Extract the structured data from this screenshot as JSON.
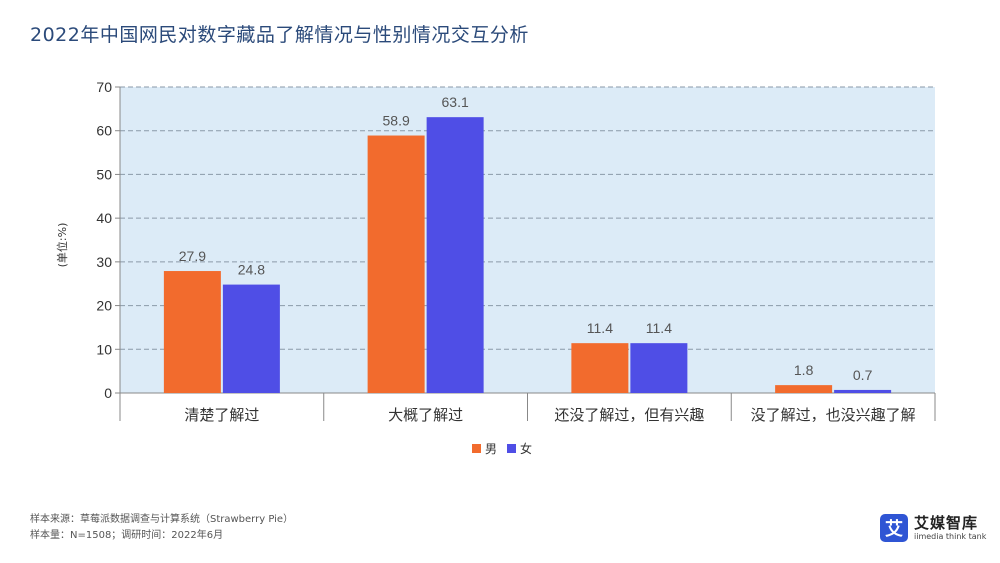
{
  "title": "2022年中国网民对数字藏品了解情况与性别情况交互分析",
  "chart_data": {
    "type": "bar",
    "categories": [
      "清楚了解过",
      "大概了解过",
      "还没了解过，但有兴趣",
      "没了解过，也没兴趣了解"
    ],
    "series": [
      {
        "name": "男",
        "values": [
          27.9,
          58.9,
          11.4,
          1.8
        ],
        "color": "#f26b2d"
      },
      {
        "name": "女",
        "values": [
          24.8,
          63.1,
          11.4,
          0.7
        ],
        "color": "#4f4ee6"
      }
    ],
    "ylabel": "(单位:%)",
    "ylim": [
      0,
      70
    ],
    "yticks": [
      0,
      10,
      20,
      30,
      40,
      50,
      60,
      70
    ],
    "grid": true,
    "legend": "bottom-center",
    "plot_background": "#dcebf7"
  },
  "footer": {
    "line1": "样本来源：草莓派数据调查与计算系统（Strawberry Pie）",
    "line2": "样本量：N=1508；调研时间：2022年6月"
  },
  "logo": {
    "glyph": "艾",
    "name": "艾媒智库",
    "sub": "iimedia think tank"
  }
}
